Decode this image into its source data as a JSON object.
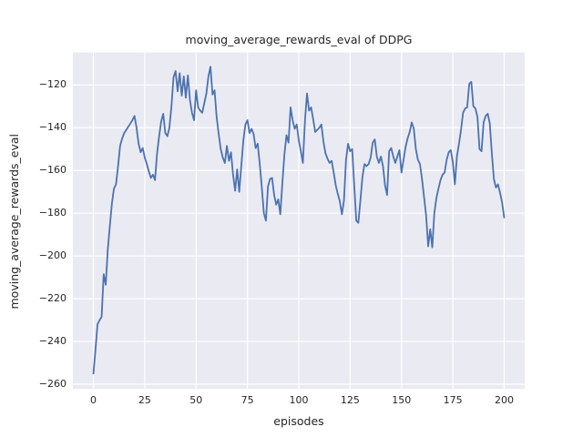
{
  "figure": {
    "title": "moving_average_rewards_eval of DDPG",
    "xlabel": "episodes",
    "ylabel": "moving_average_rewards_eval"
  },
  "colors": {
    "figure_bg": "#ffffff",
    "axes_bg": "#eaeaf2",
    "grid": "#ffffff",
    "line": "#4c72b0",
    "text": "#262626"
  },
  "chart_data": {
    "type": "line",
    "title": "moving_average_rewards_eval of DDPG",
    "xlabel": "episodes",
    "ylabel": "moving_average_rewards_eval",
    "xlim": [
      -10,
      210
    ],
    "ylim": [
      -262.2,
      -104.8
    ],
    "xticks": [
      0,
      25,
      50,
      75,
      100,
      125,
      150,
      175,
      200
    ],
    "yticks": [
      -260,
      -240,
      -220,
      -200,
      -180,
      -160,
      -140,
      -120
    ],
    "grid": true,
    "legend": false,
    "series": [
      {
        "name": "moving_average_rewards_eval",
        "color": "#4c72b0",
        "x_start": 0,
        "x_step": 1,
        "y": [
          -255,
          -244,
          -232,
          -230,
          -228.5,
          -208.5,
          -213.5,
          -197,
          -186,
          -175.5,
          -168.5,
          -166.5,
          -158,
          -148.5,
          -145,
          -142.5,
          -141,
          -139.5,
          -138,
          -136.5,
          -134.5,
          -140,
          -147.5,
          -151.5,
          -149.5,
          -154,
          -157,
          -160.5,
          -163.5,
          -162,
          -164.5,
          -152,
          -144,
          -137,
          -133.5,
          -142.5,
          -144,
          -140,
          -130,
          -116.5,
          -113.5,
          -123,
          -114.5,
          -125,
          -116,
          -126,
          -115.5,
          -127,
          -133,
          -136.5,
          -122.5,
          -130.5,
          -132,
          -133,
          -128.5,
          -124,
          -116,
          -111.5,
          -124.5,
          -122.5,
          -135,
          -143,
          -150,
          -154,
          -156.5,
          -148.5,
          -155.5,
          -151.5,
          -162,
          -169.5,
          -159.5,
          -170,
          -158,
          -146,
          -138.5,
          -136.5,
          -142.5,
          -140.5,
          -143,
          -149.5,
          -147.5,
          -157,
          -168,
          -180,
          -183.5,
          -167.5,
          -164,
          -163.5,
          -171.5,
          -176,
          -173.5,
          -180.5,
          -166,
          -152.5,
          -143.5,
          -147,
          -130.5,
          -136.5,
          -140.5,
          -138.5,
          -146,
          -151,
          -156.5,
          -137,
          -124,
          -132,
          -130.5,
          -136,
          -142,
          -141,
          -140,
          -138.5,
          -146.5,
          -152,
          -154.5,
          -156.5,
          -155.5,
          -161,
          -167,
          -171,
          -174.5,
          -180.5,
          -174,
          -155,
          -147.5,
          -151,
          -150,
          -167,
          -183.5,
          -184.5,
          -174,
          -163,
          -157,
          -158,
          -157,
          -154,
          -147,
          -145.5,
          -153.5,
          -156.5,
          -153.5,
          -158,
          -167,
          -171.5,
          -151,
          -149.5,
          -153.5,
          -156.5,
          -153.5,
          -150.5,
          -161,
          -155,
          -149,
          -145,
          -142,
          -137.5,
          -140.5,
          -150,
          -155,
          -157,
          -164,
          -172.5,
          -181,
          -195.5,
          -187.5,
          -196,
          -180,
          -173,
          -168.5,
          -164.5,
          -162,
          -161,
          -155,
          -151.5,
          -150.5,
          -156,
          -166.5,
          -153.5,
          -147.5,
          -141,
          -133,
          -131,
          -130.5,
          -119.5,
          -118.5,
          -130,
          -131,
          -135,
          -150,
          -151,
          -137.5,
          -134.5,
          -133.5,
          -138,
          -152,
          -164,
          -168,
          -166.5,
          -170.5,
          -175,
          -182
        ]
      }
    ]
  }
}
